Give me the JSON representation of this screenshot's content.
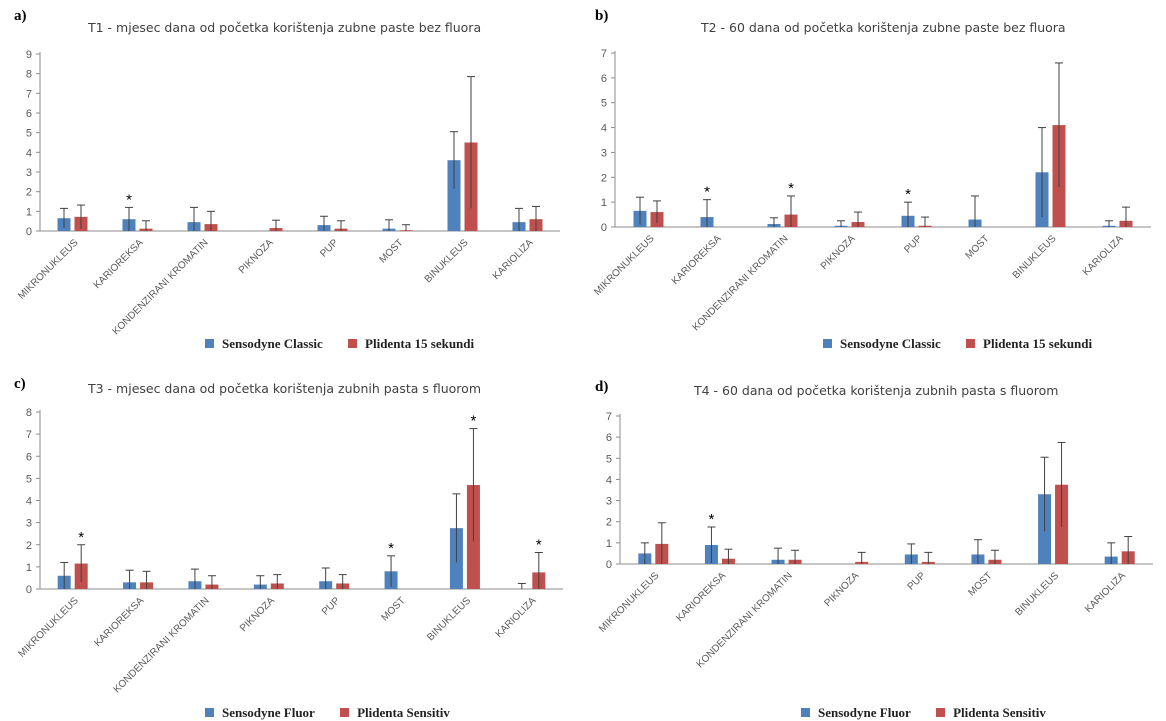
{
  "chart_data": [
    {
      "type": "bar",
      "panel_label": "a)",
      "title": "T1 - mjesec dana od početka korištenja zubne paste bez fluora",
      "categories": [
        "MIKRONUKLEUS",
        "KARIOREKSA",
        "KONDENZIRANI KROMATIN",
        "PIKNOZA",
        "PUP",
        "MOST",
        "BINUKLEUS",
        "KARIOLIZA"
      ],
      "ylim": [
        0,
        9
      ],
      "yticks": [
        "0",
        "1",
        "2",
        "3",
        "4",
        "5",
        "6",
        "7",
        "8",
        "9"
      ],
      "series": [
        {
          "name": "Sensodyne Classic",
          "color": "#4f81bd",
          "values": [
            0.65,
            0.6,
            0.45,
            0,
            0.3,
            0.12,
            3.6,
            0.45
          ],
          "errors": [
            0.5,
            0.6,
            0.75,
            0,
            0.45,
            0.45,
            1.45,
            0.7
          ],
          "significant": [
            false,
            true,
            false,
            false,
            false,
            false,
            false,
            false
          ]
        },
        {
          "name": "Plidenta 15 sekundi",
          "color": "#c0504d",
          "values": [
            0.72,
            0.12,
            0.35,
            0.15,
            0.12,
            0.04,
            4.5,
            0.6
          ],
          "errors": [
            0.6,
            0.4,
            0.65,
            0.4,
            0.4,
            0.28,
            3.35,
            0.65
          ],
          "significant": [
            false,
            false,
            false,
            false,
            false,
            false,
            false,
            false
          ]
        }
      ]
    },
    {
      "type": "bar",
      "panel_label": "b)",
      "title": "T2 - 60 dana od početka korištenja zubne paste bez fluora",
      "categories": [
        "MIKRONUKLEUS",
        "KARIOREKSA",
        "KONDENZIRANI KROMATIN",
        "PIKNOZA",
        "PUP",
        "MOST",
        "BINUKLEUS",
        "KARIOLIZA"
      ],
      "ylim": [
        0,
        7
      ],
      "yticks": [
        "0",
        "1",
        "2",
        "3",
        "4",
        "5",
        "6",
        "7"
      ],
      "series": [
        {
          "name": "Sensodyne Classic",
          "color": "#4f81bd",
          "values": [
            0.65,
            0.4,
            0.12,
            0.05,
            0.45,
            0.3,
            2.2,
            0.05
          ],
          "errors": [
            0.55,
            0.7,
            0.25,
            0.2,
            0.55,
            0.95,
            1.8,
            0.2
          ],
          "significant": [
            false,
            true,
            false,
            false,
            true,
            false,
            false,
            false
          ]
        },
        {
          "name": "Plidenta 15 sekundi",
          "color": "#c0504d",
          "values": [
            0.6,
            0,
            0.5,
            0.2,
            0.05,
            0,
            4.1,
            0.25
          ],
          "errors": [
            0.45,
            0,
            0.75,
            0.4,
            0.35,
            0,
            2.5,
            0.55
          ],
          "significant": [
            false,
            false,
            true,
            false,
            false,
            false,
            false,
            false
          ]
        }
      ]
    },
    {
      "type": "bar",
      "panel_label": "c)",
      "title": "T3 - mjesec dana od početka korištenja zubnih pasta s fluorom",
      "categories": [
        "MIKRONUKLEUS",
        "KARIOREKSA",
        "KONDENZIRANI KROMATIN",
        "PIKNOZA",
        "PUP",
        "MOST",
        "BINUKLEUS",
        "KARIOLIZA"
      ],
      "ylim": [
        0,
        8
      ],
      "yticks": [
        "0",
        "1",
        "2",
        "3",
        "4",
        "5",
        "6",
        "7",
        "8"
      ],
      "series": [
        {
          "name": "Sensodyne Fluor",
          "color": "#4f81bd",
          "values": [
            0.6,
            0.3,
            0.35,
            0.2,
            0.35,
            0.8,
            2.75,
            0
          ],
          "errors": [
            0.6,
            0.55,
            0.55,
            0.4,
            0.6,
            0.7,
            1.55,
            0.25
          ],
          "significant": [
            false,
            false,
            false,
            false,
            false,
            true,
            false,
            false
          ]
        },
        {
          "name": "Plidenta Sensitiv",
          "color": "#c0504d",
          "values": [
            1.15,
            0.3,
            0.2,
            0.25,
            0.25,
            0,
            4.7,
            0.75
          ],
          "errors": [
            0.85,
            0.5,
            0.4,
            0.4,
            0.4,
            0,
            2.55,
            0.9
          ],
          "significant": [
            true,
            false,
            false,
            false,
            false,
            false,
            true,
            true
          ]
        }
      ]
    },
    {
      "type": "bar",
      "panel_label": "d)",
      "title": "T4 - 60 dana od početka korištenja zubnih pasta s fluorom",
      "categories": [
        "MIKRONUKLEUS",
        "KARIOREKSA",
        "KONDENZIRANI KROMATIN",
        "PIKNOZA",
        "PUP",
        "MOST",
        "BINUKLEUS",
        "KARIOLIZA"
      ],
      "ylim": [
        0,
        7
      ],
      "yticks": [
        "0",
        "1",
        "2",
        "3",
        "4",
        "5",
        "6",
        "7"
      ],
      "series": [
        {
          "name": "Sensodyne Fluor",
          "color": "#4f81bd",
          "values": [
            0.5,
            0.9,
            0.2,
            0,
            0.45,
            0.45,
            3.3,
            0.35
          ],
          "errors": [
            0.5,
            0.85,
            0.55,
            0,
            0.5,
            0.7,
            1.75,
            0.65
          ],
          "significant": [
            false,
            true,
            false,
            false,
            false,
            false,
            false,
            false
          ]
        },
        {
          "name": "Plidenta Sensitiv",
          "color": "#c0504d",
          "values": [
            0.95,
            0.25,
            0.2,
            0.1,
            0.1,
            0.2,
            3.75,
            0.6
          ],
          "errors": [
            1.0,
            0.45,
            0.45,
            0.45,
            0.45,
            0.45,
            2.0,
            0.7
          ],
          "significant": [
            false,
            false,
            false,
            false,
            false,
            false,
            false,
            false
          ]
        }
      ]
    }
  ]
}
